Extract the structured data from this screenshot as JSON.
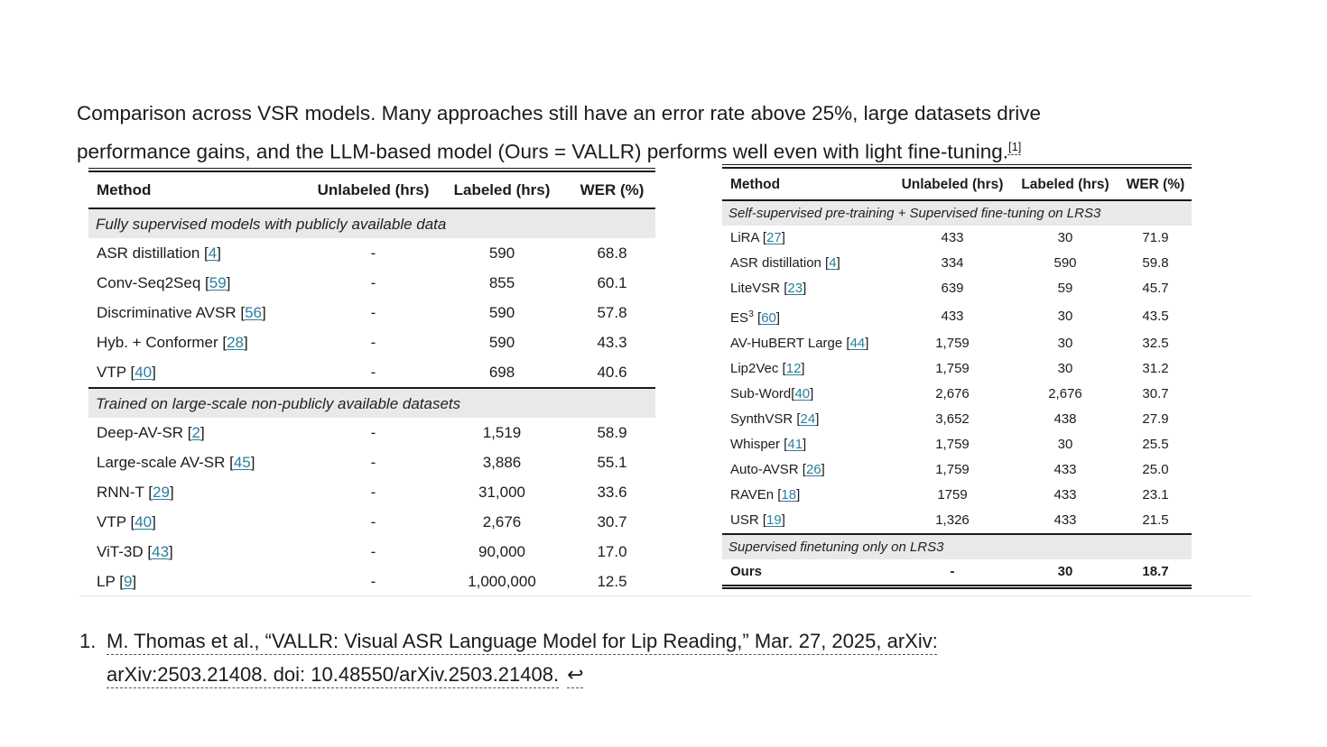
{
  "intro": {
    "line1": "Comparison across VSR models. Many approaches still have an error rate above 25%, large datasets drive",
    "line2": "performance gains, and the LLM-based model (Ours = VALLR) performs well even with light fine-tuning.",
    "footnote_ref": "[1]"
  },
  "tables": {
    "left": {
      "columns": [
        "Method",
        "Unlabeled (hrs)",
        "Labeled (hrs)",
        "WER (%)"
      ],
      "sections": [
        {
          "label": "Fully supervised models with publicly available data",
          "rows": [
            {
              "method": "ASR distillation",
              "ref": "4",
              "unlabeled": "-",
              "labeled": "590",
              "wer": "68.8"
            },
            {
              "method": "Conv-Seq2Seq",
              "ref": "59",
              "unlabeled": "-",
              "labeled": "855",
              "wer": "60.1"
            },
            {
              "method": "Discriminative AVSR",
              "ref": "56",
              "unlabeled": "-",
              "labeled": "590",
              "wer": "57.8"
            },
            {
              "method": "Hyb. + Conformer",
              "ref": "28",
              "unlabeled": "-",
              "labeled": "590",
              "wer": "43.3"
            },
            {
              "method": "VTP",
              "ref": "40",
              "unlabeled": "-",
              "labeled": "698",
              "wer": "40.6"
            }
          ]
        },
        {
          "label": "Trained on large-scale non-publicly available datasets",
          "rows": [
            {
              "method": "Deep-AV-SR",
              "ref": "2",
              "unlabeled": "-",
              "labeled": "1,519",
              "wer": "58.9"
            },
            {
              "method": "Large-scale AV-SR",
              "ref": "45",
              "unlabeled": "-",
              "labeled": "3,886",
              "wer": "55.1"
            },
            {
              "method": "RNN-T",
              "ref": "29",
              "unlabeled": "-",
              "labeled": "31,000",
              "wer": "33.6"
            },
            {
              "method": "VTP",
              "ref": "40",
              "unlabeled": "-",
              "labeled": "2,676",
              "wer": "30.7"
            },
            {
              "method": "ViT-3D",
              "ref": "43",
              "unlabeled": "-",
              "labeled": "90,000",
              "wer": "17.0"
            },
            {
              "method": "LP",
              "ref": "9",
              "unlabeled": "-",
              "labeled": "1,000,000",
              "wer": "12.5"
            }
          ]
        }
      ]
    },
    "right": {
      "columns": [
        "Method",
        "Unlabeled (hrs)",
        "Labeled (hrs)",
        "WER (%)"
      ],
      "sections": [
        {
          "label": "Self-supervised pre-training + Supervised fine-tuning on LRS3",
          "rows": [
            {
              "method": "LiRA",
              "ref": "27",
              "unlabeled": "433",
              "labeled": "30",
              "wer": "71.9"
            },
            {
              "method": "ASR distillation",
              "ref": "4",
              "unlabeled": "334",
              "labeled": "590",
              "wer": "59.8"
            },
            {
              "method": "LiteVSR",
              "ref": "23",
              "unlabeled": "639",
              "labeled": "59",
              "wer": "45.7"
            },
            {
              "method": "ES",
              "sup": "3",
              "ref": "60",
              "unlabeled": "433",
              "labeled": "30",
              "wer": "43.5"
            },
            {
              "method": "AV-HuBERT Large",
              "ref": "44",
              "unlabeled": "1,759",
              "labeled": "30",
              "wer": "32.5"
            },
            {
              "method": "Lip2Vec",
              "ref": "12",
              "unlabeled": "1,759",
              "labeled": "30",
              "wer": "31.2"
            },
            {
              "method": "Sub-Word",
              "ref": "40",
              "tight": true,
              "unlabeled": "2,676",
              "labeled": "2,676",
              "wer": "30.7"
            },
            {
              "method": "SynthVSR",
              "ref": "24",
              "unlabeled": "3,652",
              "labeled": "438",
              "wer": "27.9"
            },
            {
              "method": "Whisper",
              "ref": "41",
              "unlabeled": "1,759",
              "labeled": "30",
              "wer": "25.5"
            },
            {
              "method": "Auto-AVSR",
              "ref": "26",
              "unlabeled": "1,759",
              "labeled": "433",
              "wer": "25.0"
            },
            {
              "method": "RAVEn",
              "ref": "18",
              "unlabeled": "1759",
              "labeled": "433",
              "wer": "23.1"
            },
            {
              "method": "USR",
              "ref": "19",
              "unlabeled": "1,326",
              "labeled": "433",
              "wer": "21.5"
            }
          ]
        },
        {
          "label": "Supervised finetuning only on LRS3",
          "rows": [
            {
              "method": "Ours",
              "bold": true,
              "unlabeled": "-",
              "labeled": "30",
              "wer": "18.7"
            }
          ]
        }
      ]
    }
  },
  "footnote": {
    "marker": "1.",
    "line1": "M. Thomas et al., “VALLR: Visual ASR Language Model for Lip Reading,” Mar. 27, 2025, arXiv:",
    "line2": "arXiv:2503.21408. doi: 10.48550/arXiv.2503.21408.",
    "backlink": "↩"
  },
  "colors": {
    "link": "#2b7e9e",
    "section_bg": "#e9e9e9",
    "rule_dark": "#1a1a1a",
    "divider": "#e3e3e3"
  }
}
